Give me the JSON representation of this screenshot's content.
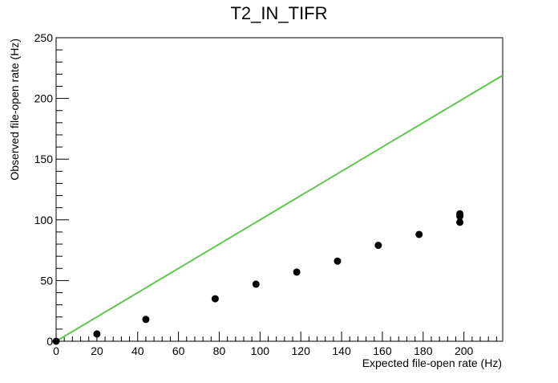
{
  "chart_data": {
    "type": "scatter",
    "title": "T2_IN_TIFR",
    "xlabel": "Expected file-open rate (Hz)",
    "ylabel": "Observed file-open rate (Hz)",
    "xlim": [
      0,
      219
    ],
    "ylim": [
      0,
      250
    ],
    "x_ticks": [
      0,
      20,
      40,
      60,
      80,
      100,
      120,
      140,
      160,
      180,
      200
    ],
    "y_ticks": [
      0,
      50,
      100,
      150,
      200,
      250
    ],
    "x_minor_step": 4,
    "y_minor_step": 10,
    "grid": false,
    "legend": "none",
    "points": {
      "x": [
        0,
        20,
        44,
        78,
        98,
        118,
        138,
        158,
        178,
        198,
        198,
        198
      ],
      "y": [
        0,
        6,
        18,
        35,
        47,
        57,
        66,
        79,
        88,
        98,
        103,
        105
      ]
    },
    "reference_line": {
      "x": [
        0,
        219
      ],
      "y": [
        0,
        219
      ]
    },
    "colors": {
      "points": "#000000",
      "reference_line": "#5cc84a",
      "axis": "#000000"
    }
  }
}
